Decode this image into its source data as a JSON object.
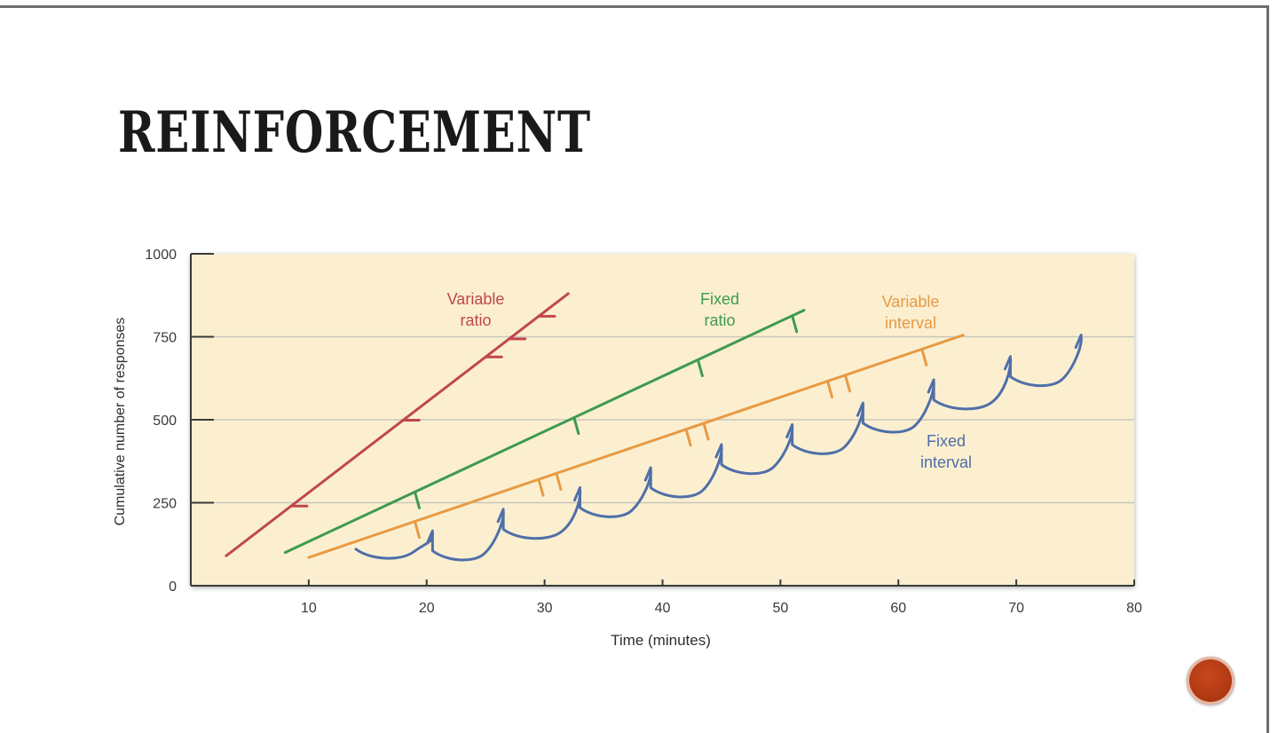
{
  "slide": {
    "title": "REINFORCEMENT"
  },
  "colors": {
    "plot_background": "#fbefd0",
    "grid": "#c9c7bb",
    "axis": "#3a3a3a",
    "variable_ratio": "#c0474a",
    "fixed_ratio": "#3e9a4e",
    "variable_interval": "#e89a43",
    "fixed_interval": "#4f6fa8",
    "nav_button": "#b23a12"
  },
  "chart_data": {
    "type": "line",
    "xlabel": "Time (minutes)",
    "ylabel": "Cumulative number of responses",
    "xlim": [
      0,
      80
    ],
    "ylim": [
      0,
      1000
    ],
    "xticks": [
      10,
      20,
      30,
      40,
      50,
      60,
      70,
      80
    ],
    "yticks": [
      0,
      250,
      500,
      750,
      1000
    ],
    "grid": "horizontal",
    "series": [
      {
        "name": "Variable ratio",
        "label_lines": [
          "Variable",
          "ratio"
        ],
        "color_key": "variable_ratio",
        "x": [
          3,
          32
        ],
        "y": [
          90,
          880
        ],
        "reinforcements_x": [
          8.5,
          18,
          25,
          27,
          29.5
        ]
      },
      {
        "name": "Fixed ratio",
        "label_lines": [
          "Fixed",
          "ratio"
        ],
        "color_key": "fixed_ratio",
        "x": [
          8,
          52
        ],
        "y": [
          100,
          830
        ],
        "reinforcements_x": [
          19,
          32.5,
          43,
          51
        ]
      },
      {
        "name": "Variable interval",
        "label_lines": [
          "Variable",
          "interval"
        ],
        "color_key": "variable_interval",
        "x": [
          10,
          65.5
        ],
        "y": [
          85,
          755
        ],
        "reinforcements_x": [
          19,
          29.5,
          31,
          42,
          43.5,
          54,
          55.5,
          62
        ]
      },
      {
        "name": "Fixed interval",
        "label_lines": [
          "Fixed",
          "interval"
        ],
        "color_key": "fixed_interval",
        "type": "scallop",
        "start": [
          14,
          110
        ],
        "scallop_peaks": [
          [
            20.5,
            160
          ],
          [
            26.5,
            225
          ],
          [
            33,
            290
          ],
          [
            39,
            350
          ],
          [
            45,
            420
          ],
          [
            51,
            480
          ],
          [
            57,
            545
          ],
          [
            63,
            615
          ],
          [
            69.5,
            685
          ],
          [
            75.5,
            750
          ]
        ]
      }
    ]
  }
}
